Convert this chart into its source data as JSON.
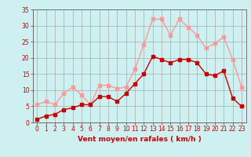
{
  "x": [
    0,
    1,
    2,
    3,
    4,
    5,
    6,
    7,
    8,
    9,
    10,
    11,
    12,
    13,
    14,
    15,
    16,
    17,
    18,
    19,
    20,
    21,
    22,
    23
  ],
  "wind_mean": [
    1,
    2,
    2.5,
    4,
    4.5,
    5.5,
    5.5,
    8,
    8,
    6.5,
    9,
    12,
    15,
    20.5,
    19.5,
    18.5,
    19.5,
    19.5,
    18.5,
    15,
    14.5,
    16,
    7.5,
    5
  ],
  "wind_gust": [
    5.5,
    6.5,
    5.5,
    9,
    11,
    8.5,
    5.5,
    11.5,
    11.5,
    10.5,
    11,
    16.5,
    24,
    32,
    32,
    27,
    32,
    29.5,
    27,
    23,
    24.5,
    26.5,
    19.5,
    11
  ],
  "wind_mean_color": "#cc0000",
  "wind_gust_color": "#ff9999",
  "bg_color": "#cef0f0",
  "grid_color": "#aaaaaa",
  "xlabel": "Vent moyen/en rafales ( km/h )",
  "xlabel_color": "#cc0000",
  "tick_color": "#cc0000",
  "ylim_min": 0,
  "ylim_max": 35,
  "yticks": [
    0,
    5,
    10,
    15,
    20,
    25,
    30,
    35
  ],
  "axis_fontsize": 6.5,
  "tick_fontsize": 5.5,
  "marker_size": 2.5,
  "line_width": 1.0
}
